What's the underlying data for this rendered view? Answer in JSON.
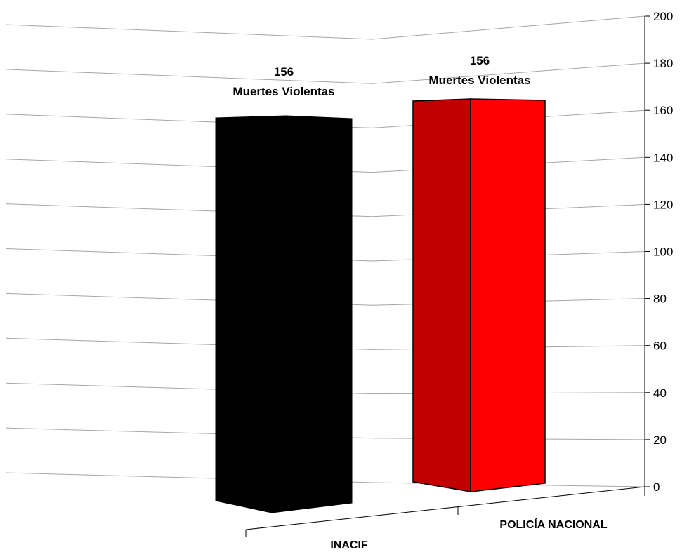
{
  "chart_data": {
    "type": "bar",
    "categories": [
      "INACIF",
      "POLICÍA NACIONAL"
    ],
    "values": [
      156,
      156
    ],
    "data_labels": [
      {
        "value": "156",
        "text": "Muertes Violentas"
      },
      {
        "value": "156",
        "text": "Muertes Violentas"
      }
    ],
    "ylim": [
      0,
      200
    ],
    "yticks": [
      "0",
      "20",
      "40",
      "60",
      "80",
      "100",
      "120",
      "140",
      "160",
      "180",
      "200"
    ],
    "grid": true,
    "style": "3d",
    "colors": {
      "inacif_front": "#000000",
      "policia_front": "#ff0000",
      "policia_side": "#c00000",
      "gridline": "#a6a6a6",
      "axis": "#000000"
    }
  }
}
